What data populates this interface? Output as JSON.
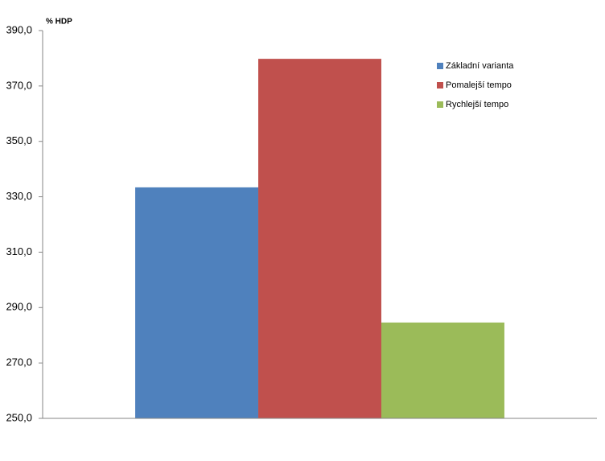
{
  "chart_data": {
    "type": "bar",
    "y_axis_label": "% HDP",
    "categories": [
      null
    ],
    "series": [
      {
        "name": "Základní varianta",
        "color": "#4f81bd",
        "values": [
          333.4
        ]
      },
      {
        "name": "Pomalejší tempo",
        "color": "#c0504d",
        "values": [
          379.8
        ]
      },
      {
        "name": "Rychlejší tempo",
        "color": "#9bbb59",
        "values": [
          284.6
        ]
      }
    ],
    "ylim": [
      250,
      390
    ],
    "yticks": [
      {
        "value": 250,
        "label": "250,0"
      },
      {
        "value": 270,
        "label": "270,0"
      },
      {
        "value": 290,
        "label": "290,0"
      },
      {
        "value": 310,
        "label": "310,0"
      },
      {
        "value": 330,
        "label": "330,0"
      },
      {
        "value": 350,
        "label": "350,0"
      },
      {
        "value": 370,
        "label": "370,0"
      },
      {
        "value": 390,
        "label": "390,0"
      }
    ],
    "grid": false,
    "legend": "top-right"
  }
}
